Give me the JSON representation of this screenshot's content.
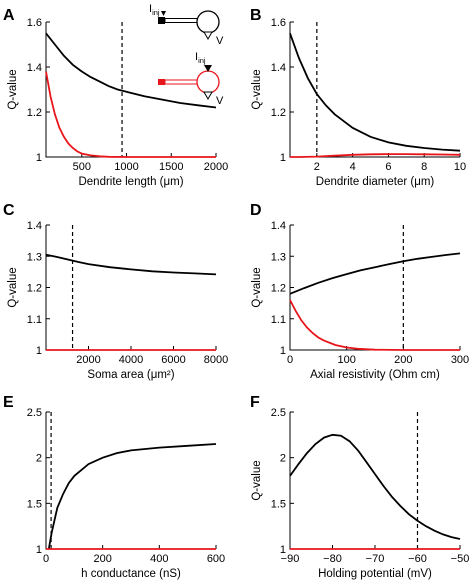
{
  "colors": {
    "black_series": "#000000",
    "red_series": "#e8151b"
  },
  "inset": {
    "current_label": "I",
    "current_sub": "inj",
    "voltage_label": "V",
    "icons": [
      "neuron-full-model-icon",
      "neuron-reduced-model-icon"
    ]
  },
  "chart_data": [
    {
      "panel": "A",
      "type": "line",
      "xlabel": "Dendrite length (μm)",
      "ylabel": "Q-value",
      "xlim": [
        100,
        2000
      ],
      "ylim": [
        1,
        1.6
      ],
      "xticks": [
        500,
        1000,
        1500,
        2000
      ],
      "yticks": [
        1,
        1.2,
        1.4,
        1.6
      ],
      "ref_x": 950,
      "series": [
        {
          "color": "black",
          "x": [
            100,
            200,
            300,
            400,
            500,
            600,
            700,
            800,
            900,
            1000,
            1200,
            1400,
            1600,
            1800,
            2000
          ],
          "y": [
            1.55,
            1.5,
            1.45,
            1.41,
            1.38,
            1.355,
            1.335,
            1.315,
            1.3,
            1.29,
            1.27,
            1.255,
            1.24,
            1.23,
            1.22
          ]
        },
        {
          "color": "red",
          "x": [
            100,
            150,
            200,
            250,
            300,
            350,
            400,
            450,
            500,
            600,
            700,
            800,
            1000,
            1500,
            2000
          ],
          "y": [
            1.38,
            1.27,
            1.19,
            1.13,
            1.09,
            1.06,
            1.04,
            1.025,
            1.015,
            1.007,
            1.003,
            1.001,
            1.0,
            1.0,
            1.0
          ]
        }
      ]
    },
    {
      "panel": "B",
      "type": "line",
      "xlabel": "Dendrite diameter (μm)",
      "ylabel": "Q-value",
      "xlim": [
        0.5,
        10
      ],
      "ylim": [
        1,
        1.6
      ],
      "xticks": [
        2,
        4,
        6,
        8,
        10
      ],
      "yticks": [
        1,
        1.2,
        1.4,
        1.6
      ],
      "ref_x": 2,
      "series": [
        {
          "color": "black",
          "x": [
            0.5,
            1,
            1.5,
            2,
            2.5,
            3,
            4,
            5,
            6,
            7,
            8,
            9,
            10
          ],
          "y": [
            1.55,
            1.44,
            1.35,
            1.28,
            1.23,
            1.19,
            1.13,
            1.09,
            1.065,
            1.05,
            1.04,
            1.033,
            1.028
          ]
        },
        {
          "color": "red",
          "x": [
            0.5,
            1,
            2,
            3,
            4,
            5,
            6,
            7,
            8,
            9,
            10
          ],
          "y": [
            1.0,
            1.0,
            1.002,
            1.006,
            1.01,
            1.012,
            1.013,
            1.013,
            1.012,
            1.011,
            1.01
          ]
        }
      ]
    },
    {
      "panel": "C",
      "type": "line",
      "xlabel": "Soma area (μm²)",
      "ylabel": "Q-value",
      "xlim": [
        0,
        8000
      ],
      "ylim": [
        1,
        1.4
      ],
      "xticks": [
        2000,
        4000,
        6000,
        8000
      ],
      "yticks": [
        1,
        1.1,
        1.2,
        1.3,
        1.4
      ],
      "ref_x": 1250,
      "series": [
        {
          "color": "black",
          "x": [
            0,
            500,
            1000,
            1500,
            2000,
            3000,
            4000,
            5000,
            6000,
            7000,
            8000
          ],
          "y": [
            1.305,
            1.298,
            1.29,
            1.282,
            1.275,
            1.265,
            1.258,
            1.252,
            1.248,
            1.245,
            1.242
          ]
        },
        {
          "color": "red",
          "x": [
            0,
            8000
          ],
          "y": [
            1.0,
            1.0
          ]
        }
      ]
    },
    {
      "panel": "D",
      "type": "line",
      "xlabel": "Axial resistivity (Ohm cm)",
      "ylabel": "Q-value",
      "xlim": [
        0,
        300
      ],
      "ylim": [
        1,
        1.4
      ],
      "xticks": [
        0,
        100,
        200,
        300
      ],
      "yticks": [
        1,
        1.1,
        1.2,
        1.3,
        1.4
      ],
      "ref_x": 200,
      "series": [
        {
          "color": "black",
          "x": [
            0,
            25,
            50,
            75,
            100,
            125,
            150,
            175,
            200,
            225,
            250,
            275,
            300
          ],
          "y": [
            1.18,
            1.198,
            1.215,
            1.23,
            1.243,
            1.255,
            1.265,
            1.275,
            1.284,
            1.292,
            1.298,
            1.304,
            1.309
          ]
        },
        {
          "color": "red",
          "x": [
            0,
            10,
            20,
            30,
            40,
            50,
            60,
            80,
            100,
            120,
            150,
            200,
            300
          ],
          "y": [
            1.16,
            1.125,
            1.095,
            1.072,
            1.054,
            1.04,
            1.03,
            1.016,
            1.008,
            1.004,
            1.001,
            1.0,
            1.0
          ]
        }
      ]
    },
    {
      "panel": "E",
      "type": "line",
      "xlabel": "h conductance (nS)",
      "ylabel": "",
      "xlim": [
        0,
        600
      ],
      "ylim": [
        1,
        2.5
      ],
      "xticks": [
        0,
        200,
        400,
        600
      ],
      "yticks": [
        1,
        1.5,
        2,
        2.5
      ],
      "ref_x": 18,
      "series": [
        {
          "color": "black",
          "x": [
            10,
            20,
            40,
            60,
            80,
            100,
            150,
            200,
            250,
            300,
            400,
            500,
            600
          ],
          "y": [
            1.0,
            1.18,
            1.45,
            1.6,
            1.72,
            1.8,
            1.93,
            2.0,
            2.05,
            2.08,
            2.11,
            2.13,
            2.15
          ]
        },
        {
          "color": "red",
          "x": [
            0,
            600
          ],
          "y": [
            1.0,
            1.0
          ]
        }
      ]
    },
    {
      "panel": "F",
      "type": "line",
      "xlabel": "Holding potential (mV)",
      "ylabel": "Q-value",
      "xlim": [
        -90,
        -50
      ],
      "ylim": [
        1,
        2.5
      ],
      "xticks": [
        -90,
        -80,
        -70,
        -60,
        -50
      ],
      "yticks": [
        1,
        1.5,
        2,
        2.5
      ],
      "ref_x": -60,
      "series": [
        {
          "color": "black",
          "x": [
            -90,
            -88,
            -86,
            -84,
            -82,
            -80,
            -78,
            -76,
            -74,
            -72,
            -70,
            -68,
            -66,
            -64,
            -62,
            -60,
            -58,
            -56,
            -54,
            -52,
            -50
          ],
          "y": [
            1.8,
            1.93,
            2.05,
            2.15,
            2.22,
            2.25,
            2.24,
            2.18,
            2.08,
            1.95,
            1.82,
            1.69,
            1.57,
            1.47,
            1.38,
            1.31,
            1.25,
            1.2,
            1.16,
            1.13,
            1.11
          ]
        },
        {
          "color": "red",
          "x": [
            -90,
            -50
          ],
          "y": [
            1.0,
            1.0
          ]
        }
      ]
    }
  ]
}
